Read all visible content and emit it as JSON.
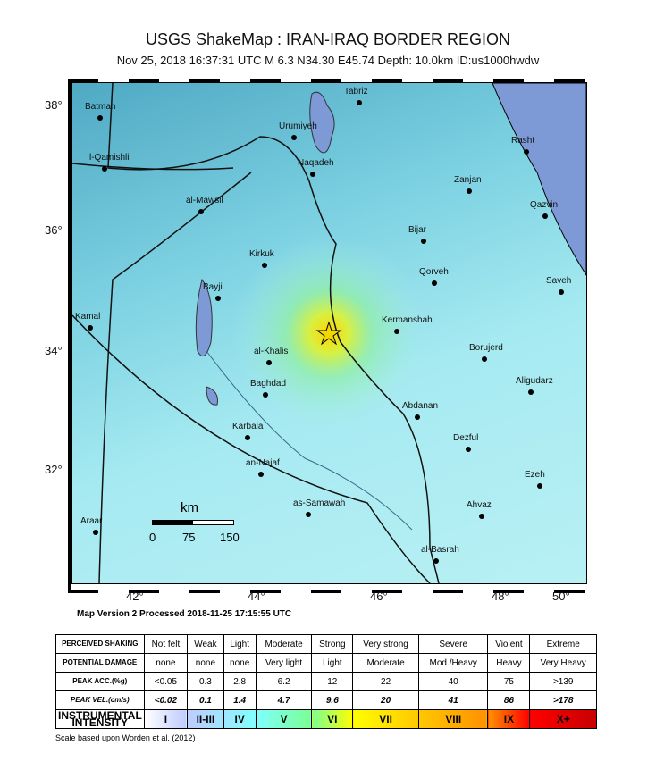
{
  "title": "USGS ShakeMap : IRAN-IRAQ BORDER REGION",
  "subtitle": "Nov 25, 2018 16:37:31 UTC   M 6.3   N34.30 E45.74   Depth: 10.0km   ID:us1000hwdw",
  "map": {
    "lat_ticks": [
      "38°",
      "36°",
      "34°",
      "32°"
    ],
    "lon_ticks": [
      "42°",
      "44°",
      "46°",
      "48°",
      "50°"
    ],
    "cities": [
      "Batman",
      "l-Qamishli",
      "al-Mawsil",
      "Kirkuk",
      "Bayji",
      "Kamal",
      "al-Khalis",
      "Baghdad",
      "Karbala",
      "an-Najaf",
      "as-Samawah",
      "Araar",
      "Tabriz",
      "Urumiyeh",
      "Naqadeh",
      "Rasht",
      "Zanjan",
      "Qazvin",
      "Bijar",
      "Qorveh",
      "Saveh",
      "Kermanshah",
      "Borujerd",
      "Aligudarz",
      "Abdanan",
      "Dezful",
      "Ezeh",
      "Ahvaz",
      "al-Basrah"
    ],
    "scale": {
      "unit": "km",
      "labels": [
        "0",
        "75",
        "150"
      ]
    },
    "epicenter_icon": "star-icon",
    "colors": {
      "water": "#7d99d6",
      "epicenter": "#f2d600"
    }
  },
  "map_version": "Map Version 2 Processed 2018-11-25 17:15:55 UTC",
  "legend": {
    "rows": [
      {
        "header": "PERCEIVED SHAKING",
        "cells": [
          "Not felt",
          "Weak",
          "Light",
          "Moderate",
          "Strong",
          "Very strong",
          "Severe",
          "Violent",
          "Extreme"
        ]
      },
      {
        "header": "POTENTIAL DAMAGE",
        "cells": [
          "none",
          "none",
          "none",
          "Very light",
          "Light",
          "Moderate",
          "Mod./Heavy",
          "Heavy",
          "Very Heavy"
        ]
      },
      {
        "header": "PEAK ACC.(%g)",
        "cells": [
          "<0.05",
          "0.3",
          "2.8",
          "6.2",
          "12",
          "22",
          "40",
          "75",
          ">139"
        ]
      },
      {
        "header": "PEAK VEL.(cm/s)",
        "cells": [
          "<0.02",
          "0.1",
          "1.4",
          "4.7",
          "9.6",
          "20",
          "41",
          "86",
          ">178"
        ]
      },
      {
        "header": "INSTRUMENTAL INTENSITY",
        "cells": [
          "I",
          "II-III",
          "IV",
          "V",
          "VI",
          "VII",
          "VIII",
          "IX",
          "X+"
        ]
      }
    ],
    "intensity_colors": [
      "#ffffff",
      "#bfccff",
      "#a0e6ff",
      "#80ffff",
      "#7aff93",
      "#ffff00",
      "#ffc800",
      "#ff9100",
      "#ff0000",
      "#c80000"
    ],
    "note": "Scale based upon Worden et al. (2012)"
  }
}
